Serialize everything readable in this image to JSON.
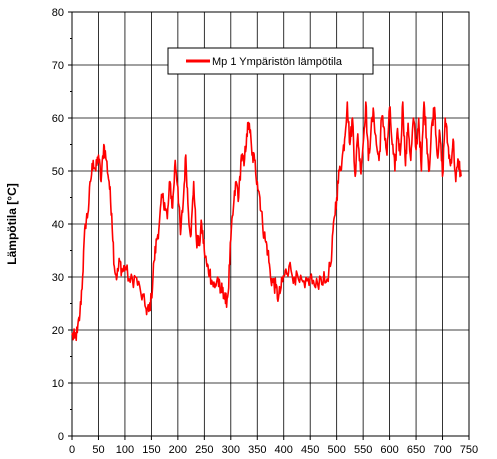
{
  "chart_data": {
    "type": "line",
    "title": "",
    "xlabel": "",
    "ylabel": "Lämpötila [°C]",
    "xlim": [
      0,
      750
    ],
    "ylim": [
      0,
      80
    ],
    "x_ticks": [
      0,
      50,
      100,
      150,
      200,
      250,
      300,
      350,
      400,
      450,
      500,
      550,
      600,
      650,
      700,
      750
    ],
    "y_ticks": [
      0,
      10,
      20,
      30,
      40,
      50,
      60,
      70,
      80
    ],
    "grid": true,
    "legend_position": "top-center",
    "series": [
      {
        "name": "Mp 1 Ympäristön lämpötila",
        "color": "#ff0000",
        "points": [
          [
            0,
            19
          ],
          [
            5,
            18.5
          ],
          [
            10,
            19.5
          ],
          [
            15,
            23
          ],
          [
            20,
            30
          ],
          [
            25,
            40
          ],
          [
            30,
            42
          ],
          [
            35,
            48
          ],
          [
            40,
            52
          ],
          [
            45,
            50
          ],
          [
            50,
            53
          ],
          [
            55,
            48
          ],
          [
            60,
            55
          ],
          [
            65,
            52
          ],
          [
            70,
            48
          ],
          [
            75,
            42
          ],
          [
            80,
            32
          ],
          [
            85,
            30
          ],
          [
            90,
            33
          ],
          [
            95,
            31
          ],
          [
            100,
            32
          ],
          [
            110,
            29
          ],
          [
            120,
            30
          ],
          [
            130,
            27
          ],
          [
            140,
            24
          ],
          [
            145,
            23.5
          ],
          [
            150,
            26
          ],
          [
            155,
            33
          ],
          [
            160,
            37
          ],
          [
            165,
            40
          ],
          [
            170,
            45
          ],
          [
            175,
            44
          ],
          [
            180,
            41
          ],
          [
            185,
            48
          ],
          [
            190,
            43
          ],
          [
            195,
            52
          ],
          [
            200,
            47
          ],
          [
            205,
            38
          ],
          [
            210,
            44
          ],
          [
            215,
            53
          ],
          [
            220,
            42
          ],
          [
            225,
            38
          ],
          [
            230,
            48
          ],
          [
            235,
            37
          ],
          [
            240,
            36
          ],
          [
            245,
            40
          ],
          [
            250,
            35
          ],
          [
            255,
            32
          ],
          [
            260,
            31
          ],
          [
            265,
            29
          ],
          [
            270,
            28
          ],
          [
            275,
            30
          ],
          [
            280,
            27
          ],
          [
            285,
            28
          ],
          [
            290,
            25
          ],
          [
            295,
            27
          ],
          [
            300,
            37
          ],
          [
            305,
            43
          ],
          [
            310,
            48
          ],
          [
            315,
            45
          ],
          [
            320,
            53
          ],
          [
            325,
            51
          ],
          [
            330,
            57
          ],
          [
            335,
            59
          ],
          [
            340,
            53
          ],
          [
            345,
            52
          ],
          [
            350,
            48
          ],
          [
            355,
            45
          ],
          [
            360,
            40
          ],
          [
            365,
            37
          ],
          [
            370,
            35
          ],
          [
            375,
            30
          ],
          [
            380,
            29
          ],
          [
            385,
            28
          ],
          [
            390,
            26
          ],
          [
            395,
            28
          ],
          [
            400,
            30
          ],
          [
            405,
            31
          ],
          [
            410,
            32
          ],
          [
            420,
            30
          ],
          [
            430,
            29
          ],
          [
            440,
            28
          ],
          [
            450,
            30
          ],
          [
            460,
            28
          ],
          [
            470,
            30
          ],
          [
            480,
            29
          ],
          [
            490,
            33
          ],
          [
            495,
            41
          ],
          [
            500,
            45
          ],
          [
            505,
            50
          ],
          [
            510,
            52
          ],
          [
            515,
            56
          ],
          [
            520,
            63
          ],
          [
            525,
            55
          ],
          [
            530,
            60
          ],
          [
            535,
            49
          ],
          [
            540,
            57
          ],
          [
            545,
            50
          ],
          [
            550,
            55
          ],
          [
            555,
            63
          ],
          [
            560,
            52
          ],
          [
            565,
            58
          ],
          [
            570,
            61
          ],
          [
            575,
            55
          ],
          [
            580,
            52
          ],
          [
            585,
            60
          ],
          [
            590,
            58
          ],
          [
            595,
            53
          ],
          [
            600,
            62
          ],
          [
            605,
            55
          ],
          [
            610,
            50
          ],
          [
            615,
            58
          ],
          [
            620,
            53
          ],
          [
            625,
            63
          ],
          [
            630,
            51
          ],
          [
            635,
            59
          ],
          [
            640,
            52
          ],
          [
            645,
            60
          ],
          [
            650,
            54
          ],
          [
            655,
            60
          ],
          [
            660,
            50
          ],
          [
            665,
            63
          ],
          [
            670,
            56
          ],
          [
            675,
            50
          ],
          [
            680,
            59
          ],
          [
            685,
            62
          ],
          [
            690,
            53
          ],
          [
            695,
            57
          ],
          [
            700,
            49
          ],
          [
            705,
            60
          ],
          [
            710,
            55
          ],
          [
            715,
            51
          ],
          [
            720,
            56
          ],
          [
            725,
            48
          ],
          [
            730,
            52
          ],
          [
            735,
            49
          ]
        ]
      }
    ]
  }
}
